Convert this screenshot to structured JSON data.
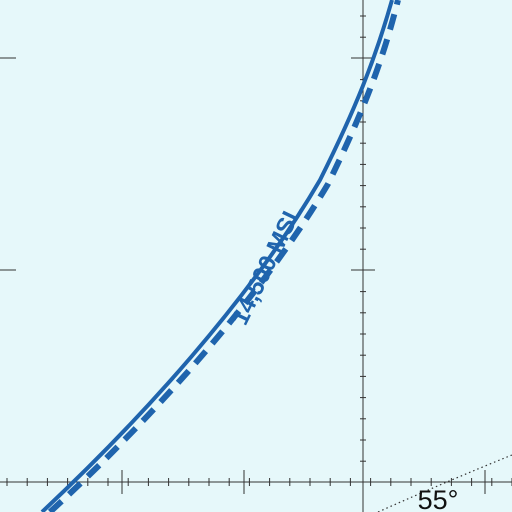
{
  "map": {
    "altitude_label": "14,500 MSL",
    "latitude_label": "55°",
    "colors": {
      "background": "#e6f8fa",
      "airspace_boundary": "#1f64ad",
      "graticule": "#333333",
      "label": "#1f64ad",
      "latitude_label": "#111111"
    }
  }
}
